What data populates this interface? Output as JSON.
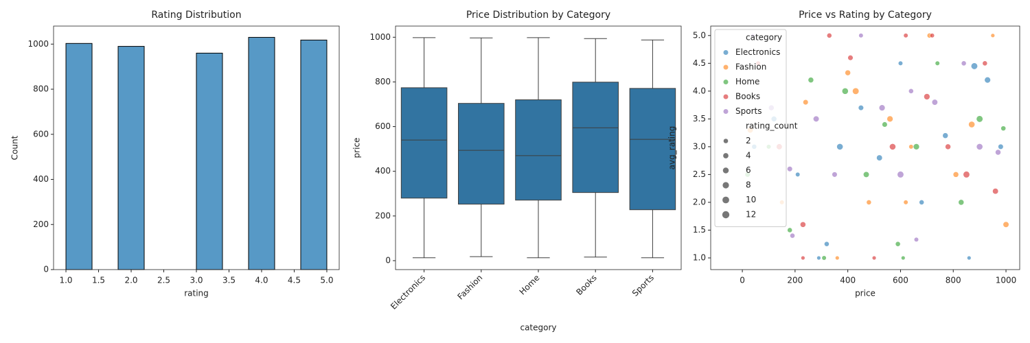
{
  "chart_data": [
    {
      "type": "histogram",
      "title": "Rating Distribution",
      "x_label": "rating",
      "y_label": "Count",
      "bins": [
        1.0,
        1.4,
        1.8,
        2.2,
        2.6,
        3.0,
        3.4,
        3.8,
        4.2,
        4.6,
        5.0
      ],
      "counts": [
        1003,
        0,
        990,
        0,
        0,
        960,
        0,
        1030,
        0,
        1018
      ],
      "color": "#5799c6",
      "xlim": [
        0.81,
        5.19
      ],
      "xticks": [
        {
          "value": 1.0,
          "label": "1.0"
        },
        1.5,
        {
          "value": 2.0,
          "label": "2.0"
        },
        2.5,
        {
          "value": 3.0,
          "label": "3.0"
        },
        3.5,
        {
          "value": 4.0,
          "label": "4.0"
        },
        4.5,
        {
          "value": 5.0,
          "label": "5.0"
        }
      ],
      "ylim": [
        0,
        1080
      ],
      "yticks": [
        0,
        200,
        400,
        600,
        800,
        1000
      ]
    },
    {
      "type": "boxplot",
      "title": "Price Distribution by Category",
      "x_label": "category",
      "y_label": "price",
      "categories": [
        "Electronics",
        "Fashion",
        "Home",
        "Books",
        "Sports"
      ],
      "color": "#3274a1",
      "boxes": [
        {
          "min": 13,
          "q1": 280,
          "median": 540,
          "q3": 774,
          "max": 998
        },
        {
          "min": 18,
          "q1": 253,
          "median": 494,
          "q3": 704,
          "max": 997
        },
        {
          "min": 13,
          "q1": 271,
          "median": 470,
          "q3": 720,
          "max": 998
        },
        {
          "min": 16,
          "q1": 305,
          "median": 595,
          "q3": 799,
          "max": 994
        },
        {
          "min": 13,
          "q1": 228,
          "median": 543,
          "q3": 771,
          "max": 988
        }
      ],
      "ylim": [
        -40,
        1050
      ],
      "yticks": [
        0,
        200,
        400,
        600,
        800,
        1000
      ]
    },
    {
      "type": "scatter",
      "title": "Price vs Rating by Category",
      "x_label": "price",
      "y_label": "avg_rating",
      "legend_title": "category",
      "legend_position": "upper left",
      "size_legend": {
        "title": "rating_count",
        "values": [
          2,
          4,
          6,
          8,
          10,
          12
        ]
      },
      "series": [
        {
          "name": "Electronics",
          "color": "#1f77b4",
          "x": [
            45,
            120,
            210,
            290,
            370,
            450,
            520,
            600,
            680,
            770,
            860,
            930,
            980,
            880,
            320
          ],
          "values": [
            3.0,
            3.5,
            2.5,
            1.0,
            3.0,
            3.7,
            2.8,
            4.5,
            2.0,
            3.2,
            1.0,
            4.2,
            3.0,
            4.45,
            1.25
          ],
          "sizes": [
            3,
            5,
            2,
            1,
            8,
            4,
            6,
            2,
            3,
            5,
            1,
            7,
            4,
            9,
            3
          ]
        },
        {
          "name": "Fashion",
          "color": "#ff7f0e",
          "x": [
            30,
            150,
            240,
            360,
            430,
            480,
            560,
            640,
            710,
            810,
            870,
            950,
            1000,
            400,
            620
          ],
          "values": [
            3.3,
            2.0,
            3.8,
            1.0,
            4.0,
            2.0,
            3.5,
            3.0,
            5.0,
            2.5,
            3.4,
            5.0,
            1.6,
            4.33,
            2.0
          ],
          "sizes": [
            6,
            2,
            4,
            1,
            9,
            3,
            7,
            2,
            3,
            5,
            8,
            1,
            6,
            5,
            2
          ]
        },
        {
          "name": "Home",
          "color": "#2ca02c",
          "x": [
            20,
            100,
            180,
            260,
            310,
            390,
            470,
            540,
            590,
            660,
            740,
            830,
            900,
            990,
            610
          ],
          "values": [
            2.5,
            3.0,
            1.5,
            4.2,
            1.0,
            4.0,
            2.5,
            3.4,
            1.25,
            3.0,
            4.5,
            2.0,
            3.5,
            3.33,
            1.0
          ],
          "sizes": [
            4,
            2,
            3,
            5,
            2,
            8,
            6,
            4,
            3,
            7,
            2,
            5,
            9,
            3,
            1
          ]
        },
        {
          "name": "Books",
          "color": "#d62728",
          "x": [
            60,
            140,
            230,
            330,
            410,
            500,
            570,
            620,
            700,
            780,
            850,
            920,
            960,
            230,
            720
          ],
          "values": [
            4.5,
            3.0,
            1.0,
            5.0,
            4.6,
            1.0,
            3.0,
            5.0,
            3.9,
            3.0,
            2.5,
            4.5,
            2.2,
            1.6,
            5.0
          ],
          "sizes": [
            2,
            6,
            1,
            3,
            4,
            1,
            8,
            2,
            7,
            5,
            9,
            3,
            6,
            5,
            2
          ]
        },
        {
          "name": "Sports",
          "color": "#9467bd",
          "x": [
            40,
            110,
            190,
            280,
            350,
            450,
            530,
            600,
            660,
            730,
            840,
            900,
            970,
            180,
            640
          ],
          "values": [
            5.0,
            3.7,
            1.4,
            3.5,
            2.5,
            5.0,
            3.7,
            2.5,
            1.33,
            3.8,
            4.5,
            3.0,
            2.9,
            2.6,
            4.0
          ],
          "sizes": [
            1,
            5,
            3,
            6,
            4,
            2,
            7,
            9,
            2,
            6,
            3,
            8,
            5,
            4,
            3
          ]
        }
      ],
      "xlim": [
        -120,
        1052
      ],
      "xticks": [
        0,
        200,
        400,
        600,
        800,
        1000
      ],
      "ylim": [
        0.79,
        5.17
      ],
      "yticks": [
        {
          "value": 1.0,
          "label": "1.0"
        },
        1.5,
        {
          "value": 2.0,
          "label": "2.0"
        },
        2.5,
        {
          "value": 3.0,
          "label": "3.0"
        },
        3.5,
        {
          "value": 4.0,
          "label": "4.0"
        },
        4.5,
        {
          "value": 5.0,
          "label": "5.0"
        }
      ]
    }
  ]
}
